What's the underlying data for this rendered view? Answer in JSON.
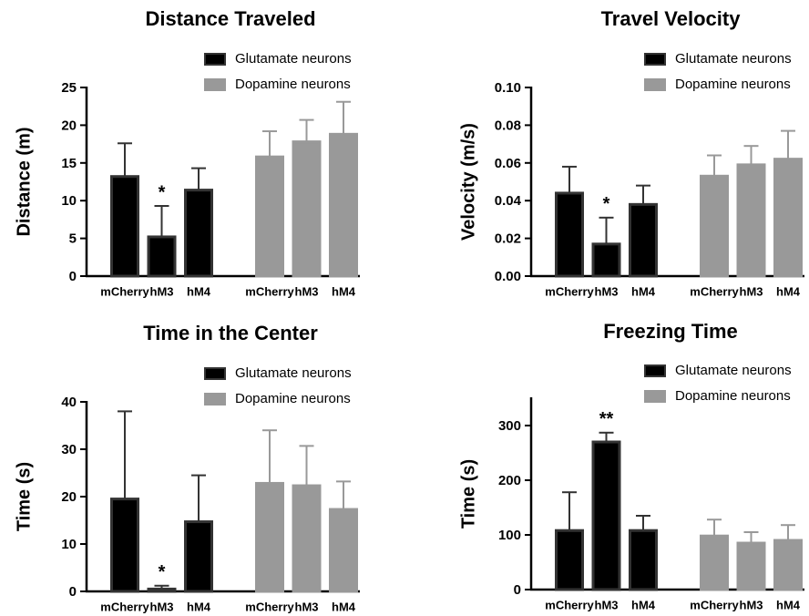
{
  "chart_data": [
    {
      "type": "bar",
      "title": "Distance Traveled",
      "y_label": "Distance (m)",
      "categories": [
        "mCherry",
        "hM3",
        "hM4",
        "mCherry",
        "hM3",
        "hM4"
      ],
      "series": [
        {
          "name": "Glutamate neurons",
          "color": "#000000",
          "values": [
            13.2,
            5.2,
            11.4,
            null,
            null,
            null
          ],
          "errors": [
            4.4,
            4.1,
            2.9,
            null,
            null,
            null
          ],
          "markers": [
            null,
            "*",
            null,
            null,
            null,
            null
          ]
        },
        {
          "name": "Dopamine neurons",
          "color": "#999999",
          "values": [
            null,
            null,
            null,
            15.8,
            17.8,
            18.8
          ],
          "errors": [
            null,
            null,
            null,
            3.4,
            2.9,
            4.3
          ]
        }
      ],
      "ylim": [
        0,
        25
      ],
      "yticks": [
        0,
        5,
        10,
        15,
        20,
        25
      ]
    },
    {
      "type": "bar",
      "title": "Travel Velocity",
      "y_label": "Velocity (m/s)",
      "categories": [
        "mCherry",
        "hM3",
        "hM4",
        "mCherry",
        "hM3",
        "hM4"
      ],
      "series": [
        {
          "name": "Glutamate neurons",
          "color": "#000000",
          "values": [
            0.044,
            0.017,
            0.038,
            null,
            null,
            null
          ],
          "errors": [
            0.014,
            0.014,
            0.01,
            null,
            null,
            null
          ],
          "markers": [
            null,
            "*",
            null,
            null,
            null,
            null
          ]
        },
        {
          "name": "Dopamine neurons",
          "color": "#999999",
          "values": [
            null,
            null,
            null,
            0.053,
            0.059,
            0.062
          ],
          "errors": [
            null,
            null,
            null,
            0.011,
            0.01,
            0.015
          ]
        }
      ],
      "ylim": [
        0,
        0.1
      ],
      "yticks": [
        {
          "value": 0,
          "label": "0.00"
        },
        {
          "value": 0.02,
          "label": "0.02"
        },
        {
          "value": 0.04,
          "label": "0.04"
        },
        {
          "value": 0.06,
          "label": "0.06"
        },
        {
          "value": 0.08,
          "label": "0.08"
        },
        {
          "value": 0.1,
          "label": "0.10"
        }
      ]
    },
    {
      "type": "bar",
      "title": "Time in the Center",
      "y_label": "Time (s)",
      "categories": [
        "mCherry",
        "hM3",
        "hM4",
        "mCherry",
        "hM3",
        "hM4"
      ],
      "series": [
        {
          "name": "Glutamate neurons",
          "color": "#000000",
          "values": [
            19.5,
            0.5,
            14.7,
            null,
            null,
            null
          ],
          "errors": [
            18.5,
            0.7,
            9.8,
            null,
            null,
            null
          ],
          "markers": [
            null,
            "*",
            null,
            null,
            null,
            null
          ]
        },
        {
          "name": "Dopamine neurons",
          "color": "#999999",
          "values": [
            null,
            null,
            null,
            22.8,
            22.3,
            17.3
          ],
          "errors": [
            null,
            null,
            null,
            11.2,
            8.4,
            5.9
          ]
        }
      ],
      "ylim": [
        0,
        40
      ],
      "yticks": [
        0,
        10,
        20,
        30,
        40
      ]
    },
    {
      "type": "bar",
      "title": "Freezing Time",
      "y_label": "Time (s)",
      "categories": [
        "mCherry",
        "hM3",
        "hM4",
        "mCherry",
        "hM3",
        "hM4"
      ],
      "series": [
        {
          "name": "Glutamate neurons",
          "color": "#000000",
          "values": [
            108,
            270,
            108,
            null,
            null,
            null
          ],
          "errors": [
            70,
            17,
            27,
            null,
            null,
            null
          ],
          "markers": [
            null,
            "**",
            null,
            null,
            null,
            null
          ]
        },
        {
          "name": "Dopamine neurons",
          "color": "#999999",
          "values": [
            null,
            null,
            null,
            98,
            85,
            90
          ],
          "errors": [
            null,
            null,
            null,
            30,
            20,
            28
          ]
        }
      ],
      "ylim": [
        0,
        350
      ],
      "yticks": [
        0,
        100,
        200,
        300
      ]
    }
  ]
}
